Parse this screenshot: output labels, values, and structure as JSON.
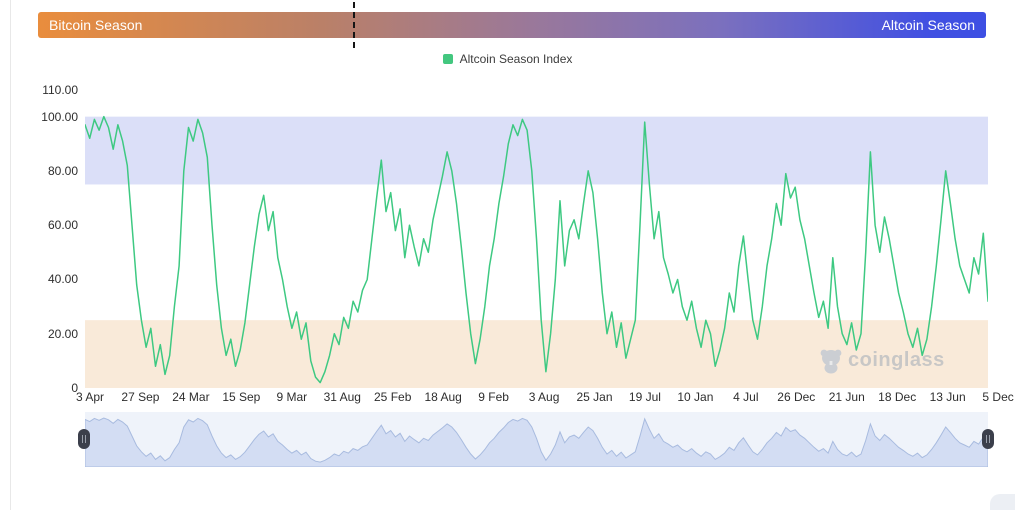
{
  "season_bar": {
    "left_label": "Bitcoin Season",
    "right_label": "Altcoin Season",
    "marker_pct": 33.2,
    "gradient_left": "#E98D3D",
    "gradient_right": "#3D4FE3"
  },
  "legend": {
    "label": "Altcoin Season Index",
    "swatch_color": "#43C77F"
  },
  "watermark": {
    "text": "coinglass"
  },
  "navigator": {
    "bg_color": "#EFF3FA",
    "fill_color": "#D3DDF3",
    "line_color": "#A8BBDF",
    "handle_color": "#3B3F4B"
  },
  "chart_data": {
    "type": "line",
    "title": "Altcoin Season Index",
    "line_color": "#3EC982",
    "grid": false,
    "legend_position": "top-center",
    "ylim": [
      0,
      110
    ],
    "y_ticks": [
      {
        "label": "110.00",
        "value": 110
      },
      {
        "label": "100.00",
        "value": 100
      },
      {
        "label": "80.00",
        "value": 80
      },
      {
        "label": "60.00",
        "value": 60
      },
      {
        "label": "40.00",
        "value": 40
      },
      {
        "label": "20.00",
        "value": 20
      },
      {
        "label": "0",
        "value": 0
      }
    ],
    "x_tick_labels": [
      "3 Apr",
      "27 Sep",
      "24 Mar",
      "15 Sep",
      "9 Mar",
      "31 Aug",
      "25 Feb",
      "18 Aug",
      "9 Feb",
      "3 Aug",
      "25 Jan",
      "19 Jul",
      "10 Jan",
      "4 Jul",
      "26 Dec",
      "21 Jun",
      "18 Dec",
      "13 Jun",
      "5 Dec"
    ],
    "bands": [
      {
        "name": "altcoin-season-zone",
        "from": 75,
        "to": 100,
        "color": "#DBDFF8"
      },
      {
        "name": "bitcoin-season-zone",
        "from": 0,
        "to": 25,
        "color": "#F9EAD9"
      }
    ],
    "values": [
      97,
      92,
      99,
      95,
      100,
      96,
      88,
      97,
      91,
      82,
      60,
      38,
      25,
      15,
      22,
      8,
      16,
      5,
      12,
      30,
      45,
      80,
      96,
      91,
      99,
      94,
      85,
      60,
      38,
      22,
      12,
      18,
      8,
      14,
      24,
      38,
      52,
      64,
      71,
      58,
      65,
      48,
      40,
      30,
      22,
      28,
      18,
      24,
      10,
      4,
      2,
      6,
      12,
      20,
      16,
      26,
      22,
      32,
      28,
      36,
      40,
      55,
      70,
      84,
      65,
      72,
      58,
      66,
      48,
      60,
      52,
      45,
      55,
      50,
      62,
      70,
      78,
      87,
      80,
      68,
      52,
      35,
      20,
      9,
      18,
      30,
      45,
      55,
      68,
      78,
      90,
      97,
      93,
      99,
      95,
      80,
      55,
      25,
      6,
      20,
      40,
      69,
      45,
      58,
      62,
      55,
      68,
      80,
      72,
      55,
      35,
      20,
      28,
      15,
      24,
      11,
      18,
      25,
      60,
      98,
      75,
      55,
      65,
      48,
      42,
      35,
      40,
      30,
      25,
      32,
      22,
      15,
      25,
      20,
      8,
      14,
      22,
      35,
      28,
      45,
      56,
      40,
      25,
      18,
      30,
      45,
      55,
      68,
      60,
      79,
      70,
      74,
      62,
      55,
      45,
      35,
      26,
      32,
      22,
      48,
      30,
      20,
      16,
      24,
      14,
      20,
      50,
      87,
      60,
      50,
      63,
      55,
      45,
      35,
      28,
      20,
      15,
      22,
      12,
      18,
      30,
      45,
      62,
      80,
      68,
      55,
      45,
      40,
      35,
      48,
      42,
      57,
      32
    ]
  }
}
